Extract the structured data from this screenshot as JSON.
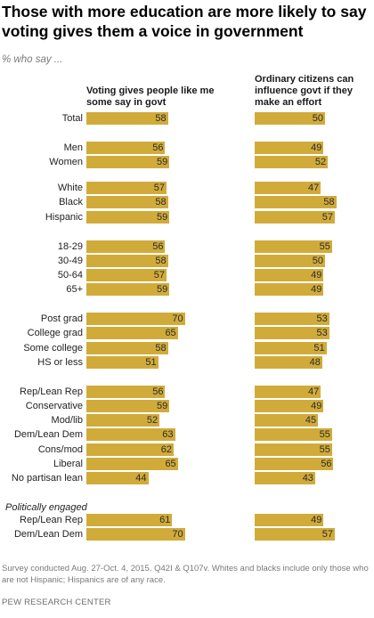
{
  "title": "Those with more education are more likely to say voting gives them a voice in government",
  "subtitle": "% who say ...",
  "columns": {
    "col1_header": "Voting gives people like me some say in govt",
    "col2_header": "Ordinary citizens can influence govt if they make an effort"
  },
  "section_label": "Politically engaged",
  "footnote": "Survey conducted Aug. 27-Oct. 4, 2015. Q42I & Q107v. Whites and blacks include only those who are not Hispanic; Hispanics are of any race.",
  "source": "PEW RESEARCH CENTER",
  "colors": {
    "bar": "#d1ab3a"
  },
  "chart_data": {
    "type": "bar",
    "orientation": "horizontal",
    "categories": [
      "Total",
      "Men",
      "Women",
      "White",
      "Black",
      "Hispanic",
      "18-29",
      "30-49",
      "50-64",
      "65+",
      "Post grad",
      "College grad",
      "Some college",
      "HS or less",
      "Rep/Lean Rep",
      "Conservative",
      "Mod/lib",
      "Dem/Lean Dem",
      "Cons/mod",
      "Liberal",
      "No partisan lean",
      "Rep/Lean Rep",
      "Dem/Lean Dem"
    ],
    "series": [
      {
        "name": "Voting gives people like me some say in govt",
        "values": [
          58,
          56,
          59,
          57,
          58,
          59,
          56,
          58,
          57,
          59,
          70,
          65,
          58,
          51,
          56,
          59,
          52,
          63,
          62,
          65,
          44,
          61,
          70
        ]
      },
      {
        "name": "Ordinary citizens can influence govt if they make an effort",
        "values": [
          50,
          49,
          52,
          47,
          58,
          57,
          55,
          50,
          49,
          49,
          53,
          53,
          51,
          48,
          47,
          49,
          45,
          55,
          55,
          56,
          43,
          49,
          57
        ]
      }
    ],
    "groups": [
      [
        "Total"
      ],
      [
        "Men",
        "Women"
      ],
      [
        "White",
        "Black",
        "Hispanic"
      ],
      [
        "18-29",
        "30-49",
        "50-64",
        "65+"
      ],
      [
        "Post grad",
        "College grad",
        "Some college",
        "HS or less"
      ],
      [
        "Rep/Lean Rep",
        "Conservative",
        "Mod/lib",
        "Dem/Lean Dem",
        "Cons/mod",
        "Liberal",
        "No partisan lean"
      ],
      [
        "Rep/Lean Rep",
        "Dem/Lean Dem"
      ]
    ],
    "units": "%",
    "grid": false,
    "legend": "none"
  }
}
